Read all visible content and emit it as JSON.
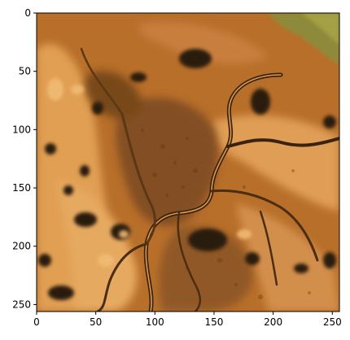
{
  "figure": {
    "image_alt": "false-color satellite image of a braided river floodplain with lakes and channels, orange/brown tones"
  },
  "axes": {
    "x_ticks": [
      "0",
      "50",
      "100",
      "150",
      "200",
      "250"
    ],
    "y_ticks": [
      "0",
      "50",
      "100",
      "150",
      "200",
      "250"
    ],
    "xlim": [
      0,
      256
    ],
    "ylim": [
      256,
      0
    ]
  },
  "colors": {
    "base": "#b86f2a",
    "light": "#e7a65a",
    "dark": "#4a2d12",
    "water_dark": "#2b1a0c",
    "olive": "#8e8a3a",
    "frame": "#000000"
  }
}
